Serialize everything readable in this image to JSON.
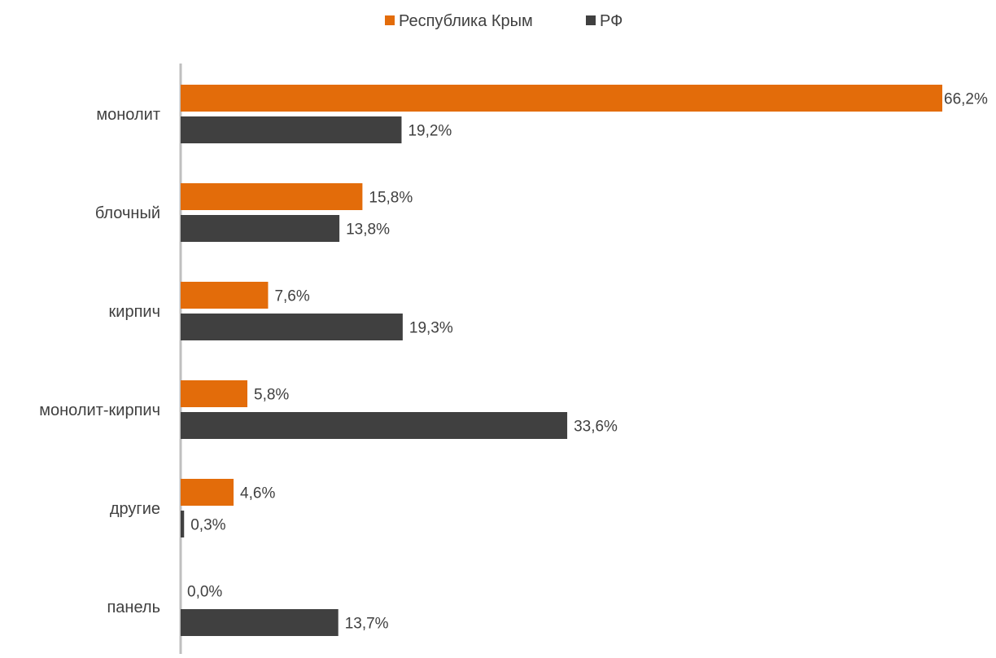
{
  "chart_data": {
    "type": "bar",
    "orientation": "horizontal",
    "categories": [
      "монолит",
      "блочный",
      "кирпич",
      "монолит-кирпич",
      "другие",
      "панель"
    ],
    "series": [
      {
        "name": "Республика Крым",
        "color": "#E36C0A",
        "values": [
          66.2,
          15.8,
          7.6,
          5.8,
          4.6,
          0.0
        ],
        "labels": [
          "66,2%",
          "15,8%",
          "7,6%",
          "5,8%",
          "4,6%",
          "0,0%"
        ]
      },
      {
        "name": "РФ",
        "color": "#404040",
        "values": [
          19.2,
          13.8,
          19.3,
          33.6,
          0.3,
          13.7
        ],
        "labels": [
          "19,2%",
          "13,8%",
          "19,3%",
          "33,6%",
          "0,3%",
          "13,7%"
        ]
      }
    ],
    "xlim": [
      0,
      66.2
    ],
    "value_unit": "%",
    "legend_position": "top-center",
    "grid": false,
    "axis_color": "#BFBFBF",
    "text_color": "#404040"
  }
}
